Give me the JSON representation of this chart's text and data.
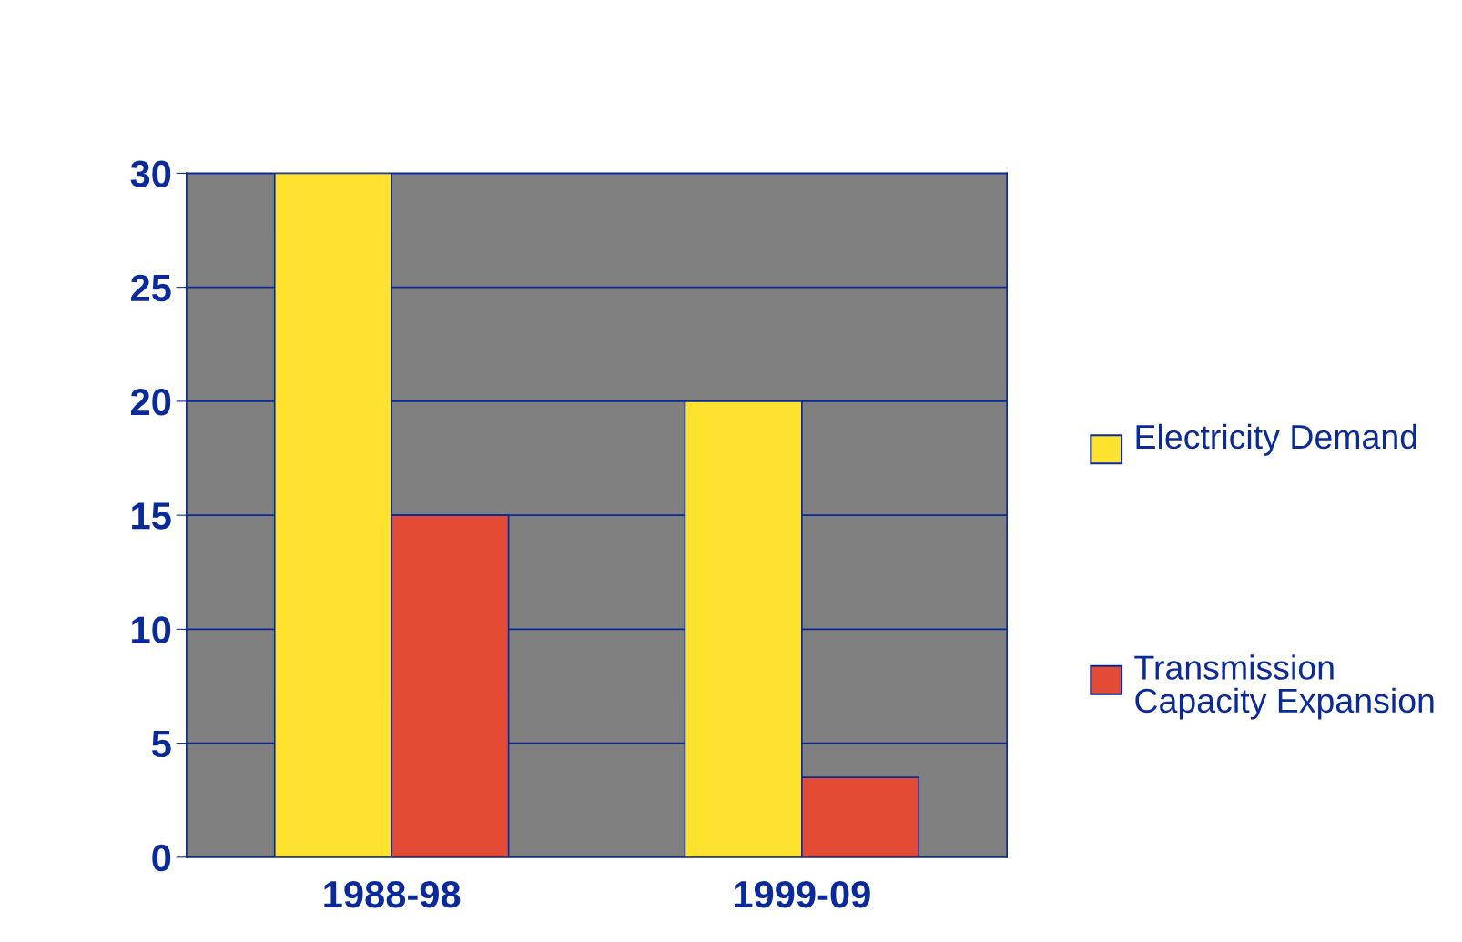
{
  "chart_data": {
    "type": "bar",
    "categories": [
      "1988-98",
      "1999-09"
    ],
    "series": [
      {
        "name": "Electricity Demand",
        "color": "#ffe22e",
        "values": [
          30,
          20
        ]
      },
      {
        "name": "Transmission Capacity Expansion",
        "color": "#e34b35",
        "values": [
          15,
          3.5
        ]
      }
    ],
    "ylim": [
      0,
      30
    ],
    "yticks": [
      0,
      5,
      10,
      15,
      20,
      25,
      30
    ],
    "grid": "y",
    "legend": "right"
  }
}
